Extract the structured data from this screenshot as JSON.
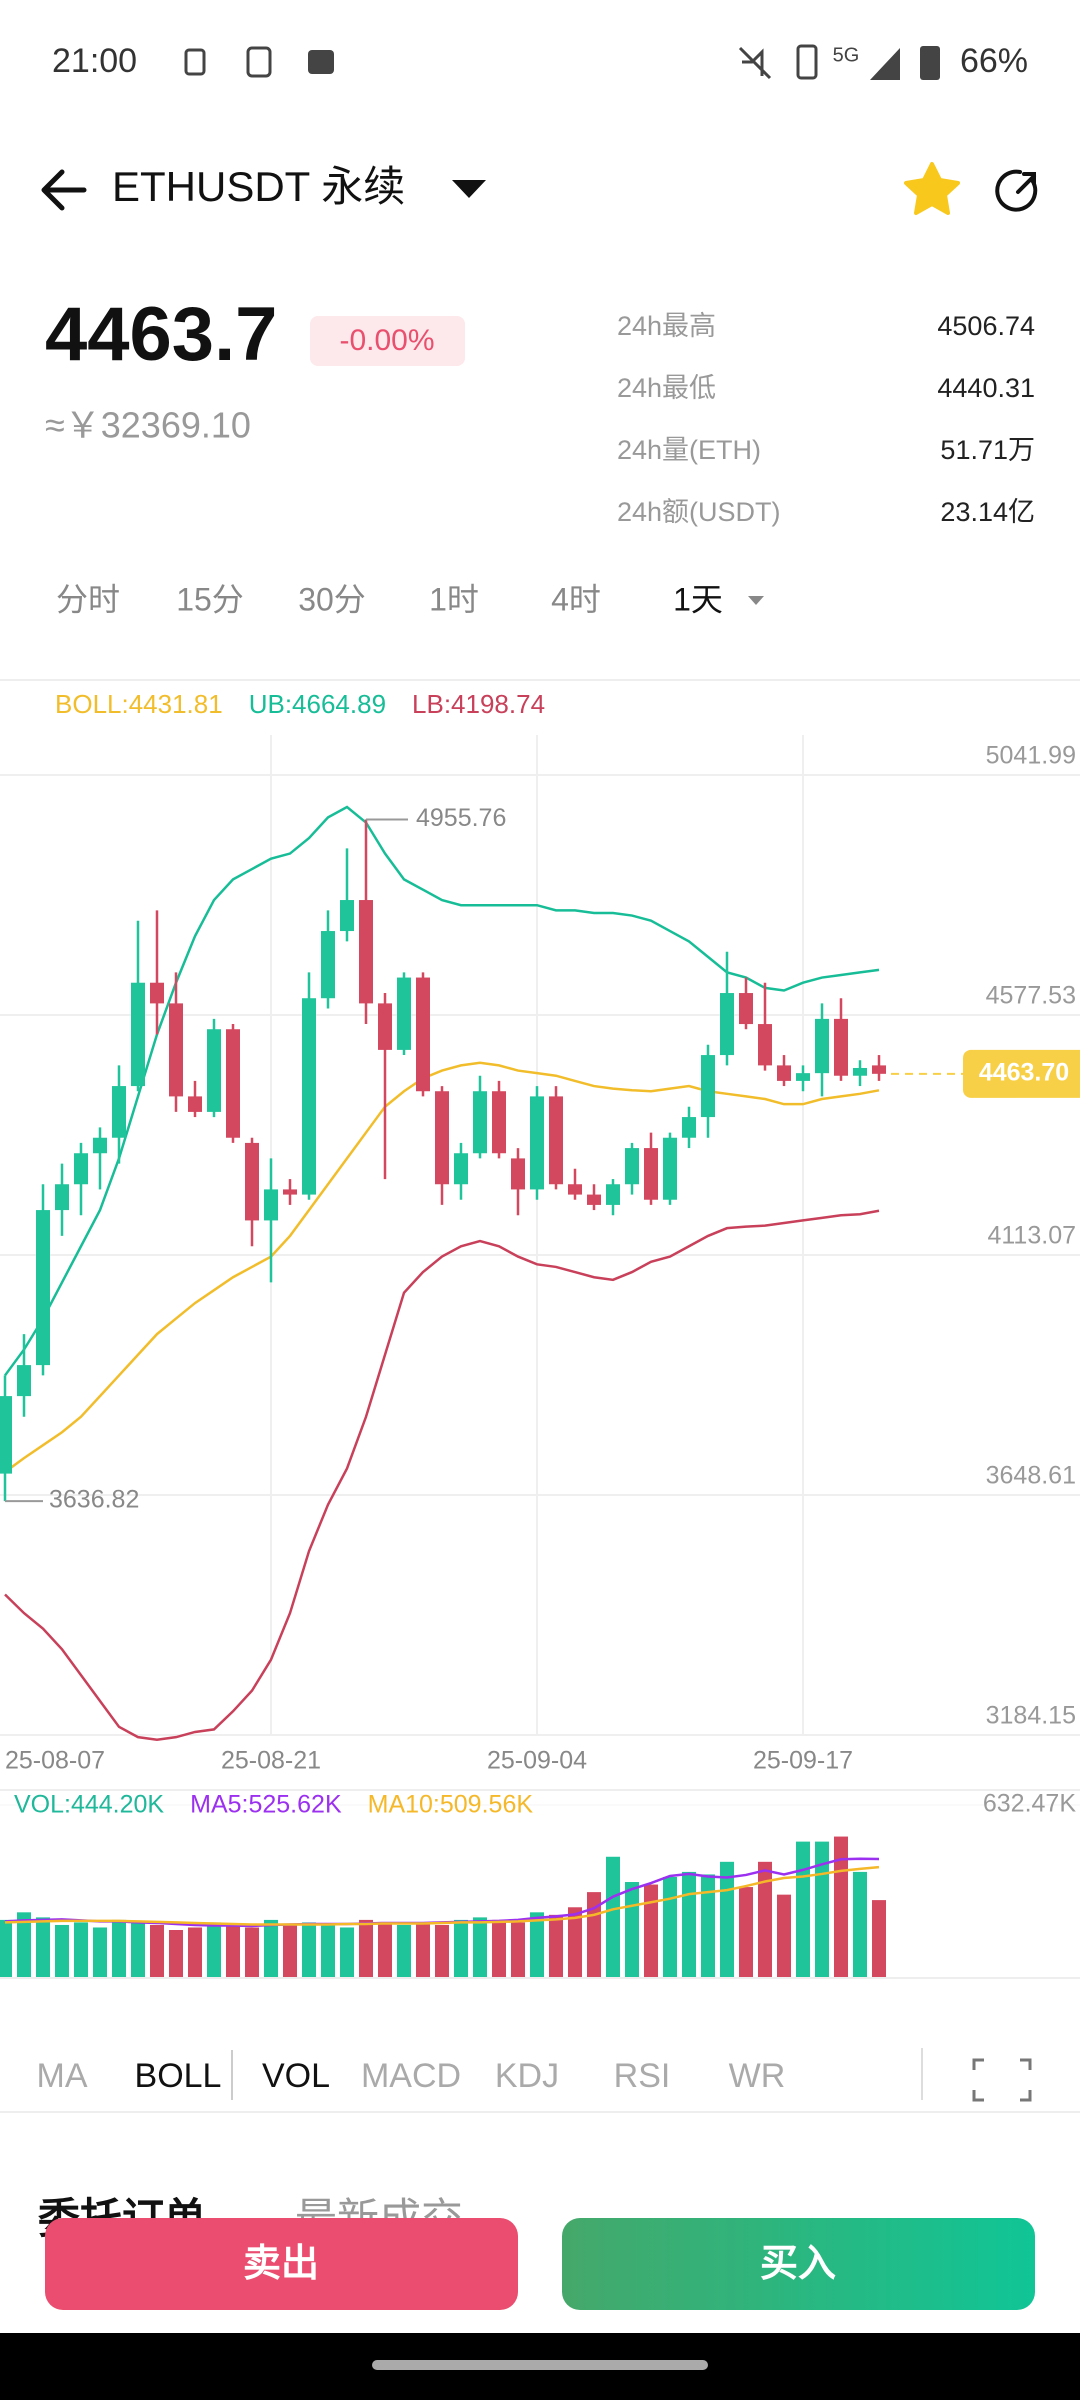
{
  "status_bar": {
    "time": "21:00",
    "network": "5G",
    "battery": "66%"
  },
  "header": {
    "symbol": "ETHUSDT 永续"
  },
  "ticker": {
    "price": "4463.7",
    "change": "-0.00%",
    "cny": "≈￥32369.10",
    "stats": [
      {
        "label": "24h最高",
        "value": "4506.74"
      },
      {
        "label": "24h最低",
        "value": "4440.31"
      },
      {
        "label": "24h量(ETH)",
        "value": "51.71万"
      },
      {
        "label": "24h额(USDT)",
        "value": "23.14亿"
      }
    ]
  },
  "timeframes": [
    "分时",
    "15分",
    "30分",
    "1时",
    "4时",
    "1天"
  ],
  "chart_data": [
    {
      "type": "candlestick",
      "up_color": "#1fc49a",
      "down_color": "#d3475f",
      "categories": [
        "25-08-07",
        null,
        null,
        null,
        null,
        null,
        null,
        null,
        null,
        null,
        null,
        null,
        null,
        null,
        "25-08-21",
        null,
        null,
        null,
        null,
        null,
        null,
        null,
        null,
        null,
        null,
        null,
        null,
        null,
        "25-09-04",
        null,
        null,
        null,
        null,
        null,
        null,
        null,
        null,
        null,
        null,
        null,
        null,
        null,
        "25-09-17",
        null,
        null,
        null,
        null
      ],
      "open": [
        3690,
        3840,
        3900,
        4200,
        4250,
        4310,
        4340,
        4440,
        4640,
        4600,
        4420,
        4390,
        4550,
        4330,
        4180,
        4240,
        4230,
        4610,
        4740,
        4800,
        4600,
        4510,
        4650,
        4430,
        4250,
        4310,
        4430,
        4300,
        4240,
        4420,
        4250,
        4230,
        4210,
        4250,
        4320,
        4220,
        4340,
        4380,
        4500,
        4620,
        4560,
        4480,
        4450,
        4465,
        4570,
        4460,
        4480
      ],
      "high": [
        3880,
        3960,
        4250,
        4290,
        4330,
        4360,
        4480,
        4760,
        4780,
        4660,
        4450,
        4570,
        4560,
        4340,
        4300,
        4260,
        4660,
        4780,
        4900,
        4955.76,
        4620,
        4660,
        4660,
        4440,
        4330,
        4460,
        4450,
        4320,
        4440,
        4440,
        4280,
        4250,
        4260,
        4330,
        4350,
        4350,
        4400,
        4520,
        4700,
        4650,
        4640,
        4500,
        4480,
        4600,
        4610,
        4490,
        4500
      ],
      "low": [
        3636.82,
        3800,
        3880,
        4150,
        4190,
        4240,
        4290,
        4430,
        4540,
        4390,
        4380,
        4380,
        4330,
        4130,
        4060,
        4210,
        4220,
        4590,
        4720,
        4560,
        4260,
        4500,
        4420,
        4210,
        4220,
        4300,
        4300,
        4190,
        4220,
        4240,
        4220,
        4200,
        4190,
        4230,
        4210,
        4210,
        4320,
        4340,
        4480,
        4550,
        4470,
        4440,
        4430,
        4420,
        4450,
        4440,
        4450
      ],
      "close": [
        3840,
        3900,
        4200,
        4250,
        4310,
        4340,
        4440,
        4640,
        4600,
        4420,
        4390,
        4550,
        4340,
        4180,
        4240,
        4230,
        4610,
        4740,
        4800,
        4600,
        4510,
        4650,
        4430,
        4250,
        4310,
        4430,
        4310,
        4240,
        4420,
        4250,
        4230,
        4210,
        4250,
        4320,
        4220,
        4340,
        4380,
        4500,
        4620,
        4560,
        4480,
        4450,
        4465,
        4570,
        4460,
        4475,
        4463.7
      ],
      "series": [
        {
          "name": "BOLL:4431.81",
          "color": "#f2bd2b",
          "values": [
            3693,
            3720,
            3745,
            3770,
            3800,
            3840,
            3880,
            3920,
            3960,
            3990,
            4020,
            4045,
            4070,
            4090,
            4110,
            4150,
            4200,
            4250,
            4300,
            4350,
            4400,
            4430,
            4455,
            4470,
            4480,
            4485,
            4480,
            4470,
            4465,
            4460,
            4450,
            4440,
            4435,
            4432,
            4430,
            4435,
            4440,
            4430,
            4425,
            4420,
            4415,
            4405,
            4405,
            4415,
            4420,
            4425,
            4431.81
          ]
        },
        {
          "name": "UB:4664.89",
          "color": "#17bd97",
          "values": [
            3880,
            3930,
            3990,
            4060,
            4130,
            4200,
            4300,
            4420,
            4540,
            4640,
            4730,
            4800,
            4840,
            4860,
            4880,
            4890,
            4920,
            4960,
            4980,
            4950,
            4890,
            4840,
            4820,
            4800,
            4790,
            4790,
            4790,
            4790,
            4790,
            4780,
            4780,
            4775,
            4775,
            4770,
            4760,
            4740,
            4720,
            4690,
            4660,
            4650,
            4630,
            4625,
            4640,
            4650,
            4655,
            4660,
            4664.89
          ]
        },
        {
          "name": "LB:4198.74",
          "color": "#c8405a",
          "values": [
            3456,
            3420,
            3390,
            3350,
            3300,
            3250,
            3200,
            3180,
            3175,
            3180,
            3190,
            3195,
            3230,
            3270,
            3330,
            3420,
            3540,
            3630,
            3700,
            3800,
            3920,
            4040,
            4080,
            4110,
            4130,
            4140,
            4130,
            4110,
            4095,
            4090,
            4080,
            4070,
            4065,
            4080,
            4100,
            4110,
            4130,
            4150,
            4165,
            4168,
            4170,
            4175,
            4180,
            4185,
            4190,
            4192,
            4198.74
          ]
        }
      ],
      "ylim": [
        3184.15,
        5041.99
      ],
      "yticks": [
        5041.99,
        4577.53,
        4113.07,
        3648.61,
        3184.15
      ],
      "high_label": 4955.76,
      "low_label": 3636.82,
      "last_price": {
        "value": 4463.7,
        "label": "4463.70"
      },
      "last_price_color": "#f8d048",
      "grid": true
    },
    {
      "type": "bar",
      "ylim": [
        290000,
        632470
      ],
      "yticks": [
        {
          "value": 632470,
          "label": "632.47K"
        }
      ],
      "series": [
        {
          "name": "VOL:444.20K",
          "color": "#1fb89a",
          "values": [
            405000,
            420000,
            410000,
            395000,
            400000,
            390000,
            405000,
            400000,
            395000,
            385000,
            390000,
            400000,
            395000,
            390000,
            405000,
            395000,
            400000,
            395000,
            390000,
            405000,
            400000,
            395000,
            400000,
            395000,
            405000,
            410000,
            405000,
            400000,
            420000,
            415000,
            430000,
            460000,
            530000,
            480000,
            475000,
            490000,
            500000,
            495000,
            520000,
            470000,
            520000,
            455000,
            560000,
            560000,
            570000,
            500000,
            444200
          ]
        },
        {
          "name": "MA5:525.62K",
          "color": "#9b30f0",
          "values": [
            402000,
            404000,
            405000,
            406000,
            404000,
            402000,
            402000,
            400000,
            399000,
            397000,
            395000,
            394000,
            394000,
            393000,
            395000,
            396000,
            397000,
            397000,
            397000,
            398000,
            399000,
            399000,
            399000,
            400000,
            401000,
            402000,
            403000,
            405000,
            409000,
            412000,
            416000,
            428000,
            451000,
            466000,
            478000,
            492000,
            496000,
            491000,
            489000,
            494000,
            503000,
            495000,
            504000,
            515000,
            525000,
            526000,
            525620
          ]
        },
        {
          "name": "MA10:509.56K",
          "color": "#f5b829",
          "values": [
            400000,
            401000,
            402000,
            403000,
            403000,
            403000,
            403000,
            402000,
            401000,
            400000,
            399000,
            398000,
            397000,
            396000,
            396000,
            396000,
            396000,
            396000,
            397000,
            397000,
            398000,
            398000,
            398000,
            399000,
            400000,
            400000,
            401000,
            402000,
            404000,
            406000,
            409000,
            415000,
            426000,
            433000,
            440000,
            447000,
            456000,
            460000,
            464000,
            472000,
            481000,
            488000,
            491000,
            496000,
            502000,
            506000,
            509560
          ]
        }
      ]
    }
  ],
  "indicator_tabs": [
    "MA",
    "BOLL",
    "VOL",
    "MACD",
    "KDJ",
    "RSI",
    "WR"
  ],
  "order_tabs": [
    "委托订单",
    "最新成交"
  ],
  "buttons": {
    "sell": "卖出",
    "buy": "买入"
  }
}
